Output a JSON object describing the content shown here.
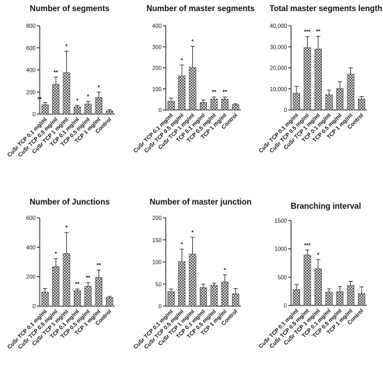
{
  "figure": {
    "pattern_color": "#555555",
    "bar_fill": "#d9d9d9",
    "axis_color": "#000000"
  },
  "chart_data": [
    {
      "type": "bar",
      "title": "Number of segments",
      "categories": [
        "CuSr TCP 0.1 mg/ml",
        "CuSr TCP 0.5 mg/ml",
        "CuSr TCP 1 mg/ml",
        "TCP 0.1 mg/ml",
        "TCP 0.5 mg/ml",
        "TCP 1 mg/ml",
        "Control"
      ],
      "values": [
        85,
        270,
        375,
        65,
        90,
        150,
        30
      ],
      "errors": [
        20,
        65,
        195,
        15,
        25,
        50,
        10
      ],
      "significance": [
        "**",
        "**",
        "*",
        "*",
        "*",
        "*",
        ""
      ],
      "ylim": [
        0,
        800
      ],
      "yticks": [
        "0",
        "200",
        "400",
        "600",
        "800"
      ],
      "xlabel": "",
      "ylabel": "",
      "grid": false
    },
    {
      "type": "bar",
      "title": "Number of master segments",
      "categories": [
        "CuSr TCP 0.1 mg/ml",
        "CuSr TCP 0.5 mg/ml",
        "CuSr TCP 1 mg/ml",
        "TCP 0.1 mg/ml",
        "TCP 0.5 mg/ml",
        "TCP 1 mg/ml",
        "Control"
      ],
      "values": [
        42,
        162,
        202,
        35,
        52,
        52,
        25
      ],
      "errors": [
        14,
        52,
        100,
        12,
        10,
        10,
        5
      ],
      "significance": [
        "",
        "*",
        "*",
        "",
        "**",
        "**",
        ""
      ],
      "ylim": [
        0,
        400
      ],
      "yticks": [
        "0",
        "100",
        "200",
        "300",
        "400"
      ],
      "xlabel": "",
      "ylabel": "",
      "grid": false
    },
    {
      "type": "bar",
      "title": "Total master segments length",
      "categories": [
        "CuSr TCP 0.1 mg/ml",
        "CuSr TCP 0.5 mg/ml",
        "CuSr TCP 1 mg/ml",
        "TCP 0.1 mg/ml",
        "TCP 0.5 mg/ml",
        "TCP 1 mg/ml",
        "Control"
      ],
      "values": [
        7900,
        29600,
        29000,
        7200,
        10200,
        17000,
        5200
      ],
      "errors": [
        3300,
        5200,
        6000,
        2200,
        3200,
        3000,
        1200
      ],
      "significance": [
        "",
        "***",
        "**",
        "",
        "",
        "",
        ""
      ],
      "ylim": [
        0,
        40000
      ],
      "yticks": [
        "0",
        "10,000",
        "20,000",
        "30,000",
        "40,000"
      ],
      "xlabel": "",
      "ylabel": "",
      "grid": false
    },
    {
      "type": "bar",
      "title": "Number of Junctions",
      "categories": [
        "CuSr TCP 0.1 mg/ml",
        "CuSr TCP 0.5 mg/ml",
        "CuSr TCP 1 mg/ml",
        "TCP 0.1 mg/ml",
        "TCP 0.5 mg/ml",
        "TCP 1 mg/ml",
        "Control"
      ],
      "values": [
        95,
        268,
        358,
        105,
        135,
        195,
        58
      ],
      "errors": [
        25,
        55,
        142,
        12,
        25,
        50,
        8
      ],
      "significance": [
        "",
        "*",
        "*",
        "**",
        "**",
        "**",
        ""
      ],
      "ylim": [
        0,
        600
      ],
      "yticks": [
        "0",
        "200",
        "400",
        "600"
      ],
      "xlabel": "",
      "ylabel": "",
      "grid": false
    },
    {
      "type": "bar",
      "title": "Number of master junction",
      "categories": [
        "CuSr TCP 0.1 mg/ml",
        "CuSr TCP 0.5 mg/ml",
        "CuSr TCP 1 mg/ml",
        "TCP 0.1 mg/ml",
        "TCP 0.5 mg/ml",
        "TCP 1 mg/ml",
        "Control"
      ],
      "values": [
        33,
        101,
        118,
        42,
        47,
        55,
        28
      ],
      "errors": [
        6,
        28,
        38,
        8,
        5,
        16,
        12
      ],
      "significance": [
        "",
        "*",
        "*",
        "",
        "",
        "*",
        ""
      ],
      "ylim": [
        0,
        200
      ],
      "yticks": [
        "0",
        "50",
        "100",
        "150",
        "200"
      ],
      "xlabel": "",
      "ylabel": "",
      "grid": false
    },
    {
      "type": "bar",
      "title": "Branching interval",
      "categories": [
        "CuSr TCP 0.1 mg/ml",
        "CuSr TCP 0.5 mg/ml",
        "CuSr TCP 1 mg/ml",
        "TCP 0.1 mg/ml",
        "TCP 0.5 mg/ml",
        "TCP 1 mg/ml",
        "Control"
      ],
      "values": [
        280,
        890,
        650,
        235,
        245,
        355,
        210
      ],
      "errors": [
        90,
        90,
        160,
        60,
        90,
        70,
        120
      ],
      "significance": [
        "",
        "***",
        "*",
        "",
        "",
        "",
        ""
      ],
      "ylim": [
        0,
        1500
      ],
      "yticks": [
        "0",
        "500",
        "1000",
        "1500"
      ],
      "xlabel": "",
      "ylabel": "",
      "grid": false
    }
  ]
}
